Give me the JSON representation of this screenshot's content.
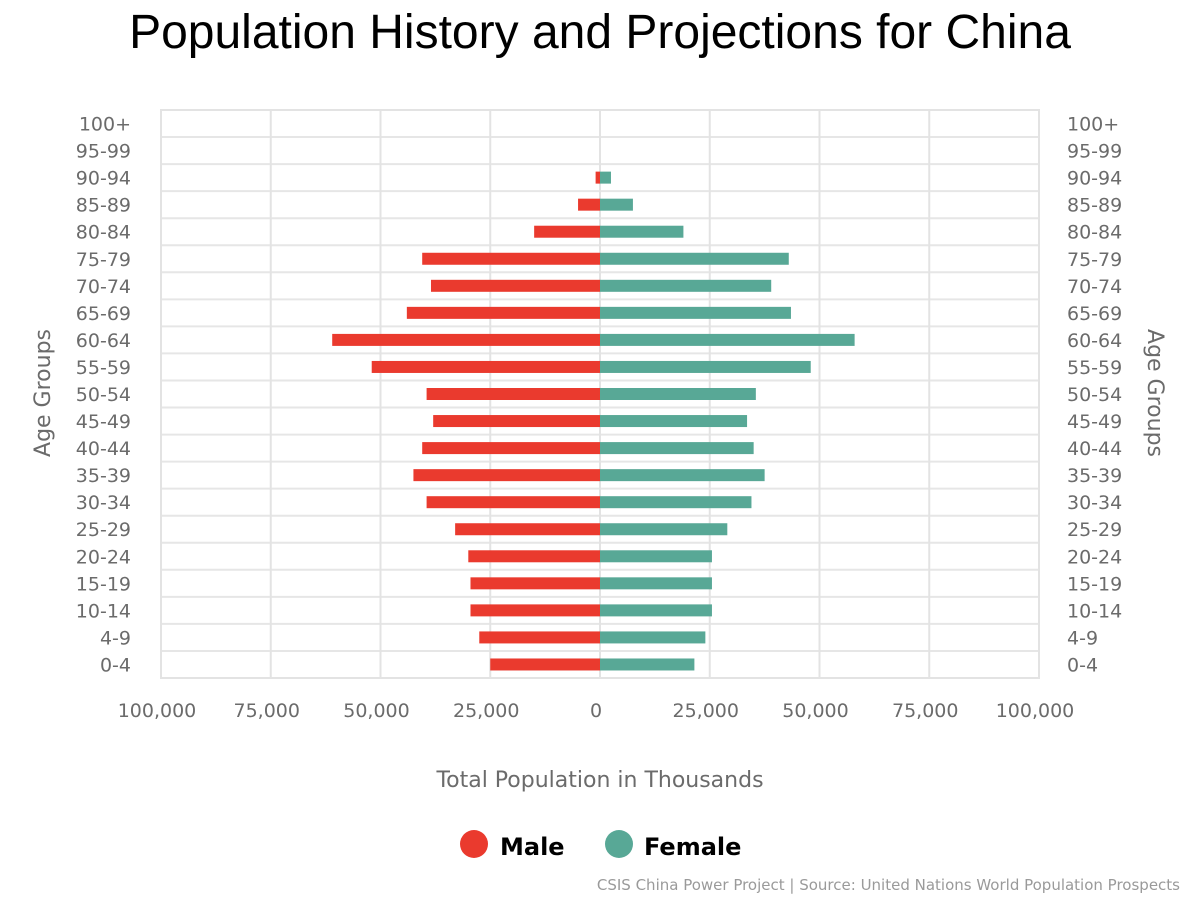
{
  "chart_data": {
    "type": "bar",
    "orientation": "horizontal-population-pyramid",
    "title": "Population History and Projections for China",
    "xlabel": "Total Population in Thousands",
    "ylabel_left": "Age Groups",
    "ylabel_right": "Age Groups",
    "xlim": [
      -100000,
      100000
    ],
    "x_ticks": [
      -100000,
      -75000,
      -50000,
      -25000,
      0,
      25000,
      50000,
      75000,
      100000
    ],
    "x_tick_labels": [
      "100,000",
      "75,000",
      "50,000",
      "25,000",
      "0",
      "25,000",
      "50,000",
      "75,000",
      "100,000"
    ],
    "categories": [
      "100+",
      "95-99",
      "90-94",
      "85-89",
      "80-84",
      "75-79",
      "70-74",
      "65-69",
      "60-64",
      "55-59",
      "50-54",
      "45-49",
      "40-44",
      "35-39",
      "30-34",
      "25-29",
      "20-24",
      "15-19",
      "10-14",
      "4-9",
      "0-4"
    ],
    "series": [
      {
        "name": "Male",
        "color": "#ea3a2e",
        "values": [
          0,
          0,
          1000,
          5000,
          15000,
          40500,
          38500,
          44000,
          61000,
          52000,
          39500,
          38000,
          40500,
          42500,
          39500,
          33000,
          30000,
          29500,
          29500,
          27500,
          25000
        ]
      },
      {
        "name": "Female",
        "color": "#58a896",
        "values": [
          0,
          0,
          2500,
          7500,
          19000,
          43000,
          39000,
          43500,
          58000,
          48000,
          35500,
          33500,
          35000,
          37500,
          34500,
          29000,
          25500,
          25500,
          25500,
          24000,
          21500
        ]
      }
    ],
    "grid": true,
    "legend": "bottom-center",
    "source": "CSIS China Power Project | Source: United Nations World Population Prospects"
  }
}
